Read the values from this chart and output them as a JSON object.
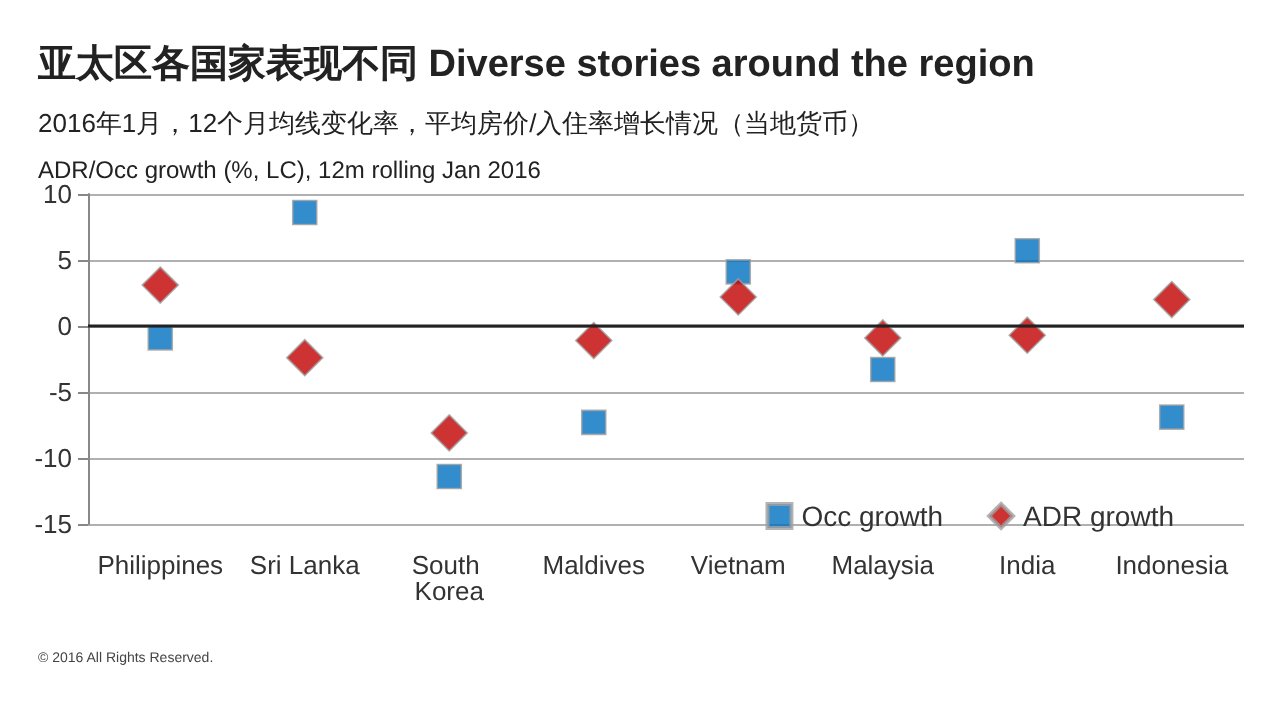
{
  "chart_data": {
    "type": "scatter",
    "title": "亚太区各国家表现不同 Diverse stories around the region",
    "subtitle": "2016年1月，12个月均线变化率，平均房价/入住率增长情况（当地货币）",
    "ylabel": "ADR/Occ growth (%, LC), 12m rolling Jan 2016",
    "categories": [
      "Philippines",
      "Sri Lanka",
      "South Korea",
      "Maldives",
      "Vietnam",
      "Malaysia",
      "India",
      "Indonesia"
    ],
    "series": [
      {
        "name": "Occ growth",
        "color": "#0070c0",
        "marker": "square",
        "values": [
          -0.9,
          8.6,
          -11.4,
          -7.3,
          4.1,
          -3.3,
          5.7,
          -6.9
        ]
      },
      {
        "name": "ADR growth",
        "color": "#c00000",
        "marker": "diamond",
        "values": [
          3.1,
          -2.4,
          -8.1,
          -1.1,
          2.2,
          -0.9,
          -0.7,
          2.0
        ]
      }
    ],
    "ylim": [
      -15,
      10
    ],
    "yticks": [
      -15,
      -10,
      -5,
      0,
      5,
      10
    ],
    "grid": "y",
    "legend": "bottom right",
    "annotations": [
      "© 2016 All Rights Reserved."
    ]
  }
}
